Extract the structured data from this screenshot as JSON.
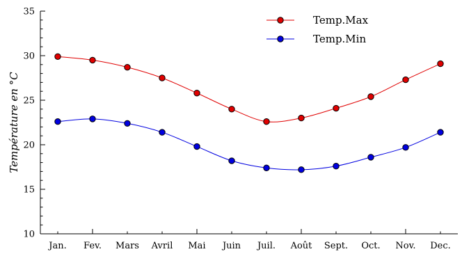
{
  "chart_data": {
    "type": "line",
    "categories": [
      "Jan.",
      "Fev.",
      "Mars",
      "Avril",
      "Mai",
      "Juin",
      "Juil.",
      "Août",
      "Sept.",
      "Oct.",
      "Nov.",
      "Dec."
    ],
    "series": [
      {
        "name": "Temp.Max",
        "color": "#e00000",
        "marker_fill": "#e00000",
        "values": [
          29.9,
          29.5,
          28.7,
          27.5,
          25.8,
          24.0,
          22.6,
          23.0,
          24.1,
          25.4,
          27.3,
          29.1
        ]
      },
      {
        "name": "Temp.Min",
        "color": "#0000e0",
        "marker_fill": "#0000e0",
        "values": [
          22.6,
          22.9,
          22.4,
          21.4,
          19.8,
          18.2,
          17.4,
          17.2,
          17.6,
          18.6,
          19.7,
          21.4
        ]
      }
    ],
    "ylabel": "Température en °C",
    "xlabel": "",
    "title": "",
    "ylim": [
      10,
      35
    ],
    "yticks": [
      10,
      15,
      20,
      25,
      30,
      35
    ],
    "grid": false,
    "legend_position": "top-center"
  }
}
